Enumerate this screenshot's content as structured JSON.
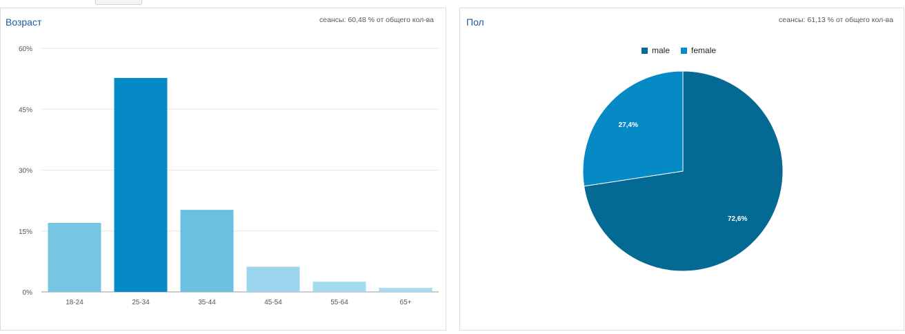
{
  "age_panel": {
    "title": "Возраст",
    "subtitle": "сеансы: 60,48 % от общего кол-ва"
  },
  "gender_panel": {
    "title": "Пол",
    "subtitle": "сеансы: 61,13 % от общего кол-ва",
    "legend": [
      {
        "label": "male",
        "color": "#046a94"
      },
      {
        "label": "female",
        "color": "#068ac6"
      }
    ]
  },
  "chart_data": [
    {
      "type": "bar",
      "title": "Возраст",
      "categories": [
        "18-24",
        "25-34",
        "35-44",
        "45-54",
        "55-64",
        "65+"
      ],
      "values": [
        17.0,
        52.7,
        20.2,
        6.2,
        2.5,
        1.0
      ],
      "colors": [
        "#77c6e4",
        "#068ac6",
        "#6bbfe1",
        "#9cd6ee",
        "#a5dbf0",
        "#a9dcf1"
      ],
      "ylim": [
        0,
        60
      ],
      "yticks": [
        "0%",
        "15%",
        "30%",
        "45%",
        "60%"
      ],
      "ytick_values": [
        0,
        15,
        30,
        45,
        60
      ],
      "grid": true
    },
    {
      "type": "pie",
      "title": "Пол",
      "labels": [
        "male",
        "female"
      ],
      "values": [
        72.6,
        27.4
      ],
      "value_labels": [
        "72,6%",
        "27,4%"
      ],
      "colors": [
        "#046a94",
        "#068ac6"
      ],
      "legend": "top"
    }
  ]
}
